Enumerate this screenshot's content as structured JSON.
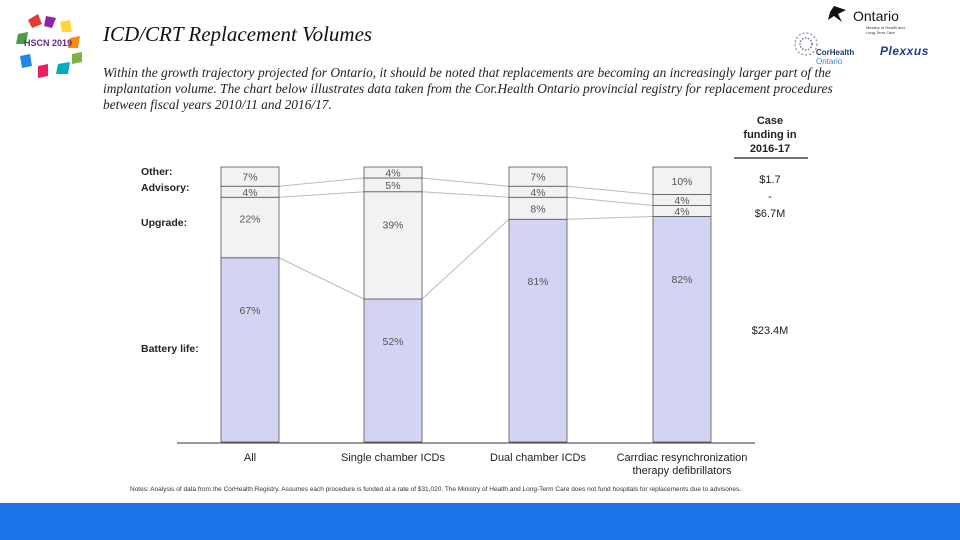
{
  "header": {
    "title": "ICD/CRT Replacement Volumes",
    "intro": "Within the growth trajectory projected for Ontario, it should be noted that replacements are becoming an increasingly larger part of the implantation volume. The chart below illustrates data taken from the Cor.Health Ontario provincial registry for replacement procedures between fiscal years 2010/11 and 2016/17."
  },
  "logos": {
    "left_logo_text": "HSCN 2019",
    "ontario": "Ontario",
    "ontario_sub": "Ministry of Health and Long-Term Care",
    "corhealth_line1": "CorHealth",
    "corhealth_line2": "Ontario",
    "plexxus": "Plexxus"
  },
  "colors": {
    "battery": "#d3d3f3",
    "upgrade": "#f2f2f2",
    "advisory": "#f2f2f2",
    "other": "#f2f2f2",
    "bar_border": "#555555",
    "connector": "#bbbbbb",
    "footer": "#1a73e8"
  },
  "chart_data": {
    "type": "bar",
    "stacked": true,
    "percent": true,
    "categories": [
      "All",
      "Single chamber ICDs",
      "Dual chamber ICDs",
      "Carrdiac resynchronization therapy defibrillators"
    ],
    "category_labels": [
      [
        "All"
      ],
      [
        "Single chamber ICDs"
      ],
      [
        "Dual chamber ICDs"
      ],
      [
        "Carrdiac resynchronization",
        "therapy defibrillators"
      ]
    ],
    "series": [
      {
        "name": "Battery life:",
        "values": [
          67,
          52,
          81,
          82
        ]
      },
      {
        "name": "Upgrade:",
        "values": [
          22,
          39,
          8,
          4
        ]
      },
      {
        "name": "Advisory:",
        "values": [
          4,
          5,
          4,
          4
        ]
      },
      {
        "name": "Other:",
        "values": [
          7,
          4,
          7,
          10
        ]
      }
    ],
    "ylim": [
      0,
      100
    ],
    "funding": {
      "header": [
        "Case",
        "funding in",
        "2016-17"
      ],
      "entries": [
        {
          "series": "Other:",
          "label": "$1.7"
        },
        {
          "series": "Advisory:",
          "label": "-"
        },
        {
          "series": "Upgrade:",
          "label": "$6.7M"
        },
        {
          "series": "Battery life:",
          "label": "$23.4M"
        }
      ]
    },
    "note": "Notes: Analysis of data from the CorHealth Registry. Assumes each procedure is funded at a rate of $31,020. The Ministry of Health and Long-Term Care does not fund hospitals for replacements due to advisories."
  }
}
